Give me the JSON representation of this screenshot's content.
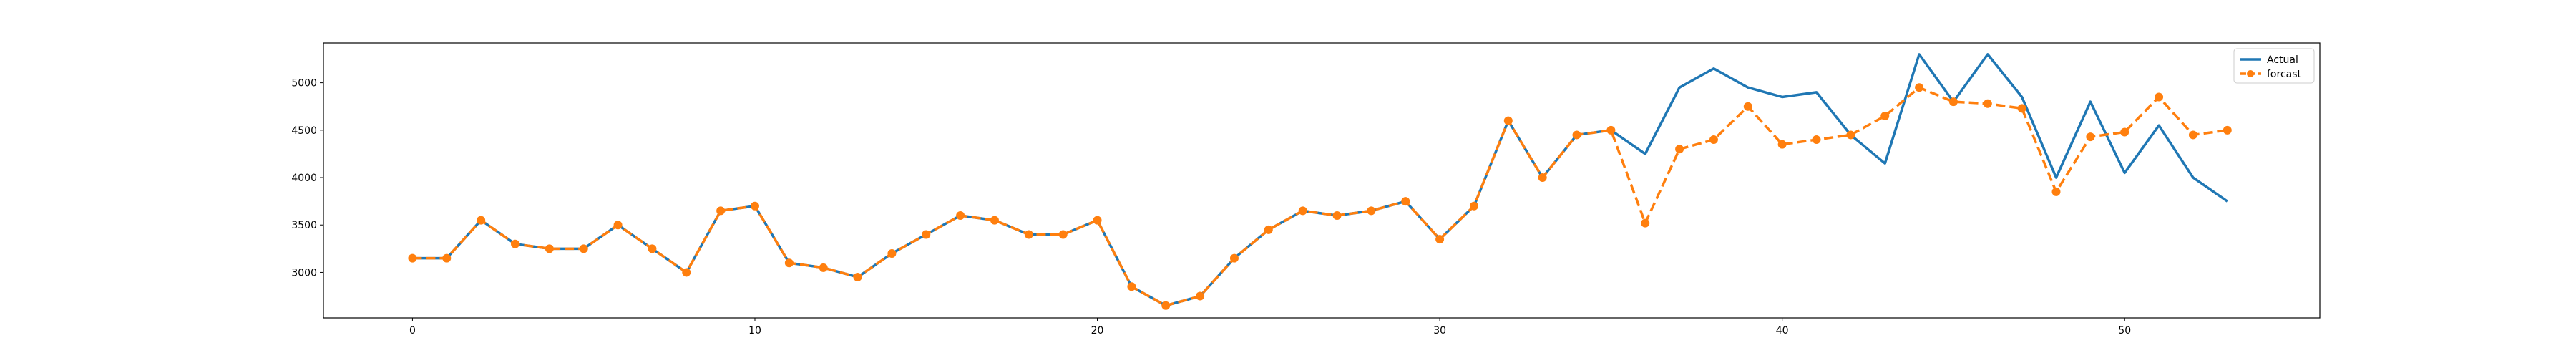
{
  "chart_data": {
    "type": "line",
    "x": [
      0,
      1,
      2,
      3,
      4,
      5,
      6,
      7,
      8,
      9,
      10,
      11,
      12,
      13,
      14,
      15,
      16,
      17,
      18,
      19,
      20,
      21,
      22,
      23,
      24,
      25,
      26,
      27,
      28,
      29,
      30,
      31,
      32,
      33,
      34,
      35,
      36,
      37,
      38,
      39,
      40,
      41,
      42,
      43,
      44,
      45,
      46,
      47,
      48,
      49,
      50,
      51,
      52,
      53
    ],
    "series": [
      {
        "name": "Actual",
        "color": "#1f77b4",
        "style": "solid",
        "marker": "none",
        "values": [
          3150,
          3150,
          3550,
          3300,
          3250,
          3250,
          3500,
          3250,
          3000,
          3650,
          3700,
          3100,
          3050,
          2950,
          3200,
          3400,
          3600,
          3550,
          3400,
          3400,
          3550,
          2850,
          2650,
          2750,
          3150,
          3450,
          3650,
          3600,
          3650,
          3750,
          3350,
          3700,
          4600,
          4000,
          4450,
          4500,
          4250,
          4950,
          5150,
          4950,
          4850,
          4900,
          4450,
          4150,
          5300,
          4800,
          5300,
          4850,
          4000,
          4800,
          4050,
          4550,
          4000,
          3750
        ]
      },
      {
        "name": "forcast",
        "color": "#ff7f0e",
        "style": "dashed",
        "marker": "circle",
        "values": [
          3150,
          3150,
          3550,
          3300,
          3250,
          3250,
          3500,
          3250,
          3000,
          3650,
          3700,
          3100,
          3050,
          2950,
          3200,
          3400,
          3600,
          3550,
          3400,
          3400,
          3550,
          2850,
          2650,
          2750,
          3150,
          3450,
          3650,
          3600,
          3650,
          3750,
          3350,
          3700,
          4600,
          4000,
          4450,
          4500,
          3520,
          4300,
          4400,
          4750,
          4350,
          4400,
          4450,
          4650,
          4950,
          4800,
          4780,
          4730,
          3850,
          4430,
          4480,
          4850,
          4450,
          4500
        ]
      }
    ],
    "xticks": [
      0,
      10,
      20,
      30,
      40,
      50
    ],
    "yticks": [
      3000,
      3500,
      4000,
      4500,
      5000
    ],
    "xlim": [
      -2.6,
      55.7
    ],
    "ylim": [
      2520,
      5420
    ],
    "grid": false,
    "legend_position": "top-right",
    "xlabel": "",
    "ylabel": "",
    "title": ""
  }
}
